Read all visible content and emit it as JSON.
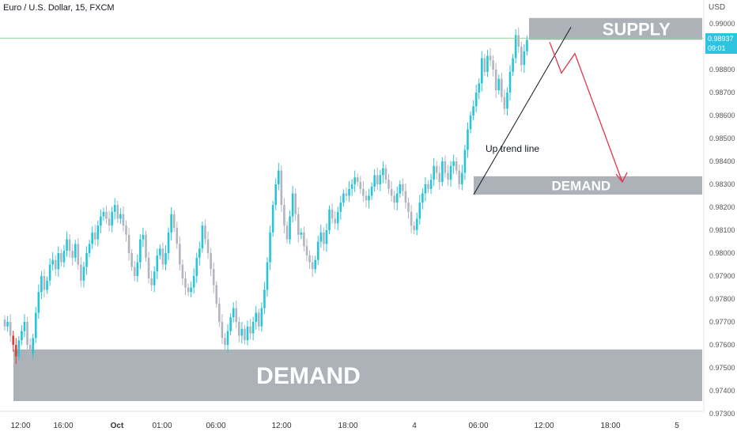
{
  "header": {
    "title": "Euro / U.S. Dollar, 15, FXCM"
  },
  "axis": {
    "currency": "USD"
  },
  "price_tag": {
    "price": "0.98937",
    "countdown": "09:01"
  },
  "colors": {
    "up": "#26c6da",
    "down": "#b2b5be",
    "zone": "#9fa3ab",
    "trend": "#131722",
    "arrow": "#e0354f",
    "last_line": "#8fd19e"
  },
  "chart_data": {
    "type": "candlestick",
    "title": "Euro / U.S. Dollar, 15, FXCM",
    "ylabel": "USD",
    "ylim": [
      0.9729,
      0.9908
    ],
    "x_ticks": [
      "12:00",
      "16:00",
      "Oct",
      "01:00",
      "06:00",
      "12:00",
      "18:00",
      "4",
      "06:00",
      "12:00",
      "18:00",
      "5"
    ],
    "y_ticks": [
      "0.99000",
      "0.98800",
      "0.98700",
      "0.98600",
      "0.98500",
      "0.98400",
      "0.98300",
      "0.98200",
      "0.98100",
      "0.98000",
      "0.97900",
      "0.97800",
      "0.97700",
      "0.97600",
      "0.97500",
      "0.97400",
      "0.97300"
    ],
    "last_price": 0.98937,
    "zones": [
      {
        "label": "SUPPLY",
        "low": 0.9893,
        "high": 0.99025
      },
      {
        "label": "DEMAND",
        "low": 0.98255,
        "high": 0.98335
      },
      {
        "label": "DEMAND",
        "low": 0.97355,
        "high": 0.9758
      }
    ],
    "trend_line": {
      "label": "Up trend line",
      "from": 0.98255,
      "to": 0.98985
    },
    "projection": [
      0.9892,
      0.98785,
      0.9887,
      0.9831
    ],
    "close": [
      0.9768,
      0.977,
      0.9764,
      0.976,
      0.9755,
      0.9762,
      0.9766,
      0.977,
      0.976,
      0.9756,
      0.9763,
      0.9774,
      0.9783,
      0.979,
      0.9784,
      0.9788,
      0.9795,
      0.9797,
      0.9793,
      0.98,
      0.9796,
      0.9801,
      0.9806,
      0.9801,
      0.9798,
      0.9804,
      0.9795,
      0.9788,
      0.9794,
      0.98,
      0.9804,
      0.9809,
      0.9806,
      0.9812,
      0.9816,
      0.9818,
      0.9815,
      0.9812,
      0.9818,
      0.9821,
      0.9815,
      0.9817,
      0.9812,
      0.9808,
      0.98,
      0.9794,
      0.979,
      0.9796,
      0.9806,
      0.9808,
      0.9798,
      0.9789,
      0.9786,
      0.9792,
      0.9799,
      0.9802,
      0.9795,
      0.98,
      0.9809,
      0.9817,
      0.9811,
      0.9804,
      0.9795,
      0.9789,
      0.9785,
      0.9783,
      0.9785,
      0.979,
      0.9798,
      0.9802,
      0.9812,
      0.9806,
      0.98,
      0.9793,
      0.9786,
      0.9778,
      0.977,
      0.9763,
      0.976,
      0.9766,
      0.9772,
      0.9776,
      0.977,
      0.9764,
      0.9767,
      0.9762,
      0.9768,
      0.9765,
      0.977,
      0.9774,
      0.9768,
      0.9776,
      0.9784,
      0.9796,
      0.9809,
      0.9821,
      0.983,
      0.9836,
      0.9821,
      0.9812,
      0.9806,
      0.9816,
      0.9826,
      0.9817,
      0.9808,
      0.9809,
      0.9803,
      0.9799,
      0.9796,
      0.9793,
      0.9797,
      0.9805,
      0.9809,
      0.9804,
      0.981,
      0.9819,
      0.9815,
      0.9813,
      0.9818,
      0.9822,
      0.9826,
      0.9825,
      0.9828,
      0.983,
      0.9833,
      0.9831,
      0.9828,
      0.9825,
      0.9823,
      0.9825,
      0.9829,
      0.9834,
      0.983,
      0.9834,
      0.9837,
      0.9832,
      0.9828,
      0.9825,
      0.9822,
      0.9826,
      0.983,
      0.9827,
      0.9822,
      0.9818,
      0.9812,
      0.981,
      0.9815,
      0.9822,
      0.9826,
      0.983,
      0.9828,
      0.9832,
      0.9838,
      0.9835,
      0.9831,
      0.984,
      0.9835,
      0.9832,
      0.9838,
      0.984,
      0.9836,
      0.983,
      0.9835,
      0.9845,
      0.9854,
      0.986,
      0.9864,
      0.987,
      0.9874,
      0.9885,
      0.9879,
      0.9886,
      0.9884,
      0.988,
      0.9871,
      0.9876,
      0.9868,
      0.9863,
      0.987,
      0.9879,
      0.9885,
      0.9895,
      0.989,
      0.9882,
      0.9888,
      0.9893
    ],
    "open": [
      0.9771,
      0.9768,
      0.977,
      0.9764,
      0.976,
      0.9755,
      0.9762,
      0.9766,
      0.977,
      0.976,
      0.9756,
      0.9763,
      0.9774,
      0.9783,
      0.979,
      0.9784,
      0.9788,
      0.9795,
      0.9797,
      0.9793,
      0.98,
      0.9796,
      0.9801,
      0.9806,
      0.9801,
      0.9798,
      0.9804,
      0.9795,
      0.9788,
      0.9794,
      0.98,
      0.9804,
      0.9809,
      0.9806,
      0.9812,
      0.9816,
      0.9818,
      0.9815,
      0.9812,
      0.9818,
      0.9821,
      0.9815,
      0.9817,
      0.9812,
      0.9808,
      0.98,
      0.9794,
      0.979,
      0.9796,
      0.9806,
      0.9808,
      0.9798,
      0.9789,
      0.9786,
      0.9792,
      0.9799,
      0.9802,
      0.9795,
      0.98,
      0.9809,
      0.9817,
      0.9811,
      0.9804,
      0.9795,
      0.9789,
      0.9785,
      0.9783,
      0.9785,
      0.979,
      0.9798,
      0.9802,
      0.9812,
      0.9806,
      0.98,
      0.9793,
      0.9786,
      0.9778,
      0.977,
      0.9763,
      0.976,
      0.9766,
      0.9772,
      0.9776,
      0.977,
      0.9764,
      0.9767,
      0.9762,
      0.9768,
      0.9765,
      0.977,
      0.9774,
      0.9768,
      0.9776,
      0.9784,
      0.9796,
      0.9809,
      0.9821,
      0.983,
      0.9836,
      0.9821,
      0.9812,
      0.9806,
      0.9816,
      0.9826,
      0.9817,
      0.9808,
      0.9809,
      0.9803,
      0.9799,
      0.9796,
      0.9793,
      0.9797,
      0.9805,
      0.9809,
      0.9804,
      0.981,
      0.9819,
      0.9815,
      0.9813,
      0.9818,
      0.9822,
      0.9826,
      0.9825,
      0.9828,
      0.983,
      0.9833,
      0.9831,
      0.9828,
      0.9825,
      0.9823,
      0.9825,
      0.9829,
      0.9834,
      0.983,
      0.9834,
      0.9837,
      0.9832,
      0.9828,
      0.9825,
      0.9822,
      0.9826,
      0.983,
      0.9827,
      0.9822,
      0.9818,
      0.9812,
      0.981,
      0.9815,
      0.9822,
      0.9826,
      0.983,
      0.9828,
      0.9832,
      0.9838,
      0.9835,
      0.9831,
      0.984,
      0.9835,
      0.9832,
      0.9838,
      0.984,
      0.9836,
      0.983,
      0.9835,
      0.9845,
      0.9854,
      0.986,
      0.9864,
      0.987,
      0.9874,
      0.9885,
      0.9879,
      0.9886,
      0.9884,
      0.988,
      0.9871,
      0.9876,
      0.9868,
      0.9863,
      0.987,
      0.9879,
      0.9885,
      0.9895,
      0.989,
      0.9882,
      0.9888
    ]
  }
}
